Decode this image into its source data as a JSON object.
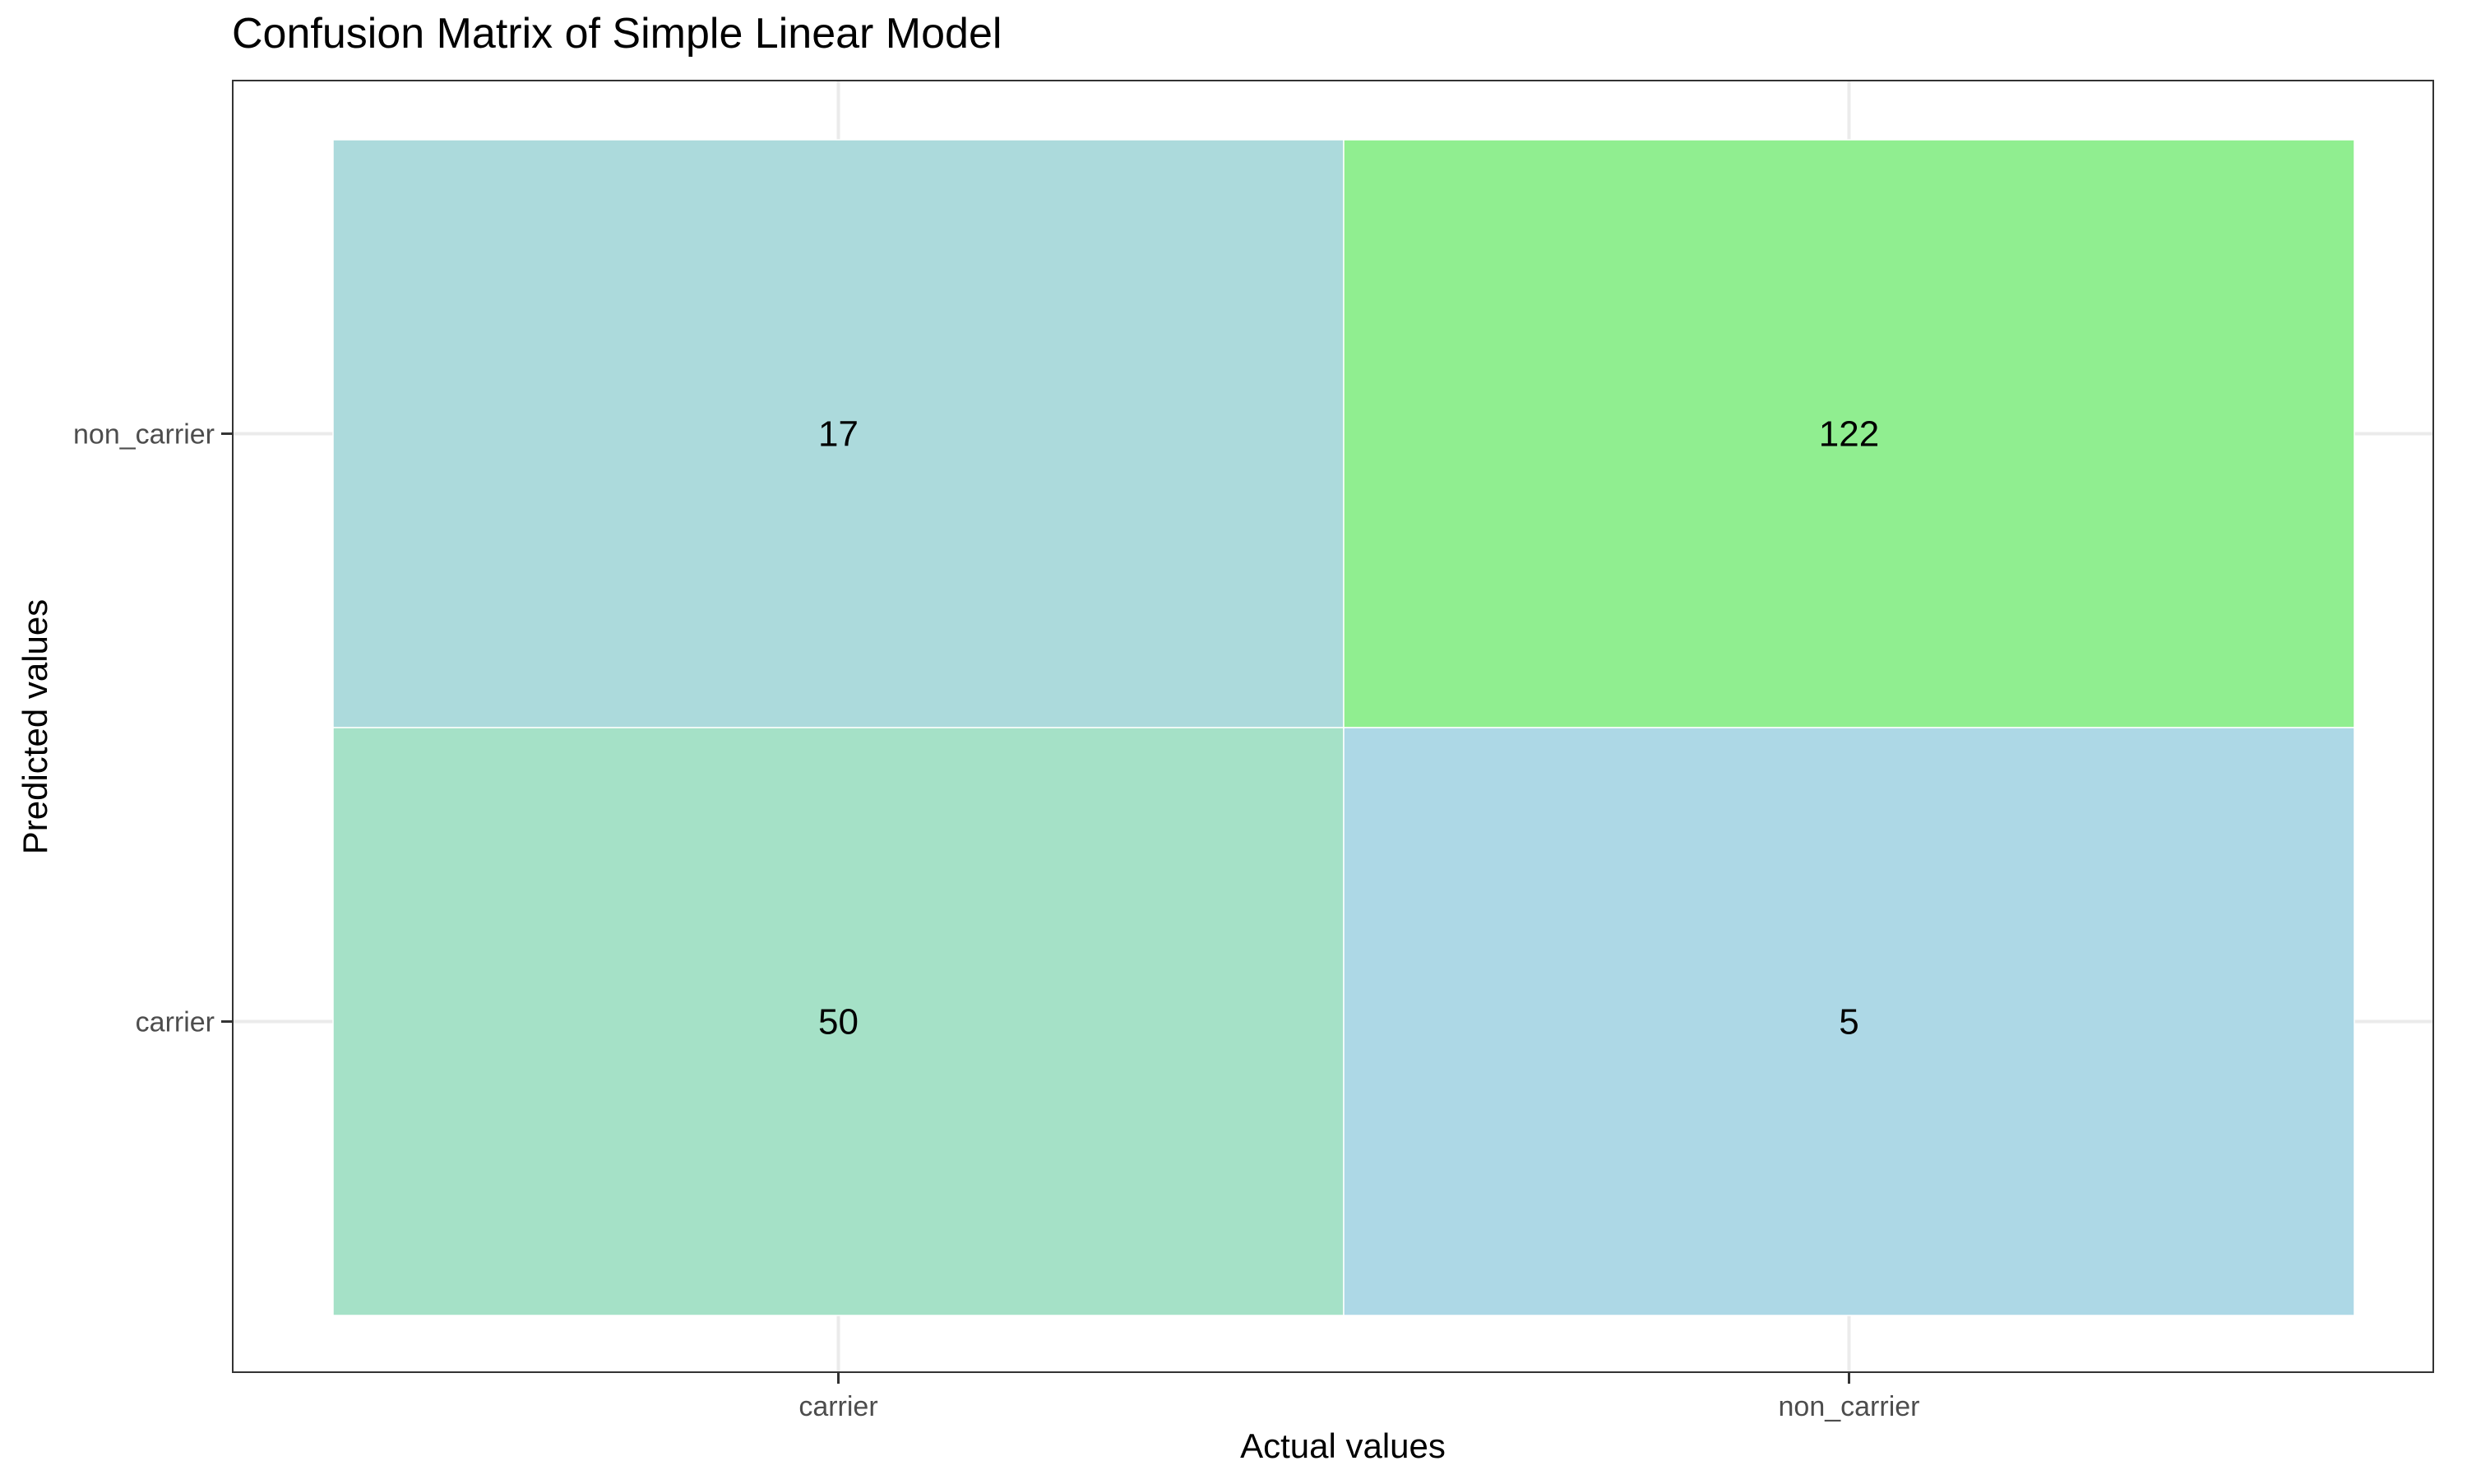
{
  "chart_data": {
    "type": "heatmap",
    "title": "Confusion Matrix of Simple Linear Model",
    "xlabel": "Actual values",
    "ylabel": "Predicted values",
    "x_categories": [
      "carrier",
      "non_carrier"
    ],
    "y_categories": [
      "carrier",
      "non_carrier"
    ],
    "cells": [
      {
        "actual": "carrier",
        "predicted": "non_carrier",
        "value": 17,
        "color": "#ACDADC"
      },
      {
        "actual": "non_carrier",
        "predicted": "non_carrier",
        "value": 122,
        "color": "#90EE90"
      },
      {
        "actual": "carrier",
        "predicted": "carrier",
        "value": 50,
        "color": "#A5E1C7"
      },
      {
        "actual": "non_carrier",
        "predicted": "carrier",
        "value": 5,
        "color": "#ADD8E6"
      }
    ],
    "grid": true,
    "legend": "none"
  }
}
